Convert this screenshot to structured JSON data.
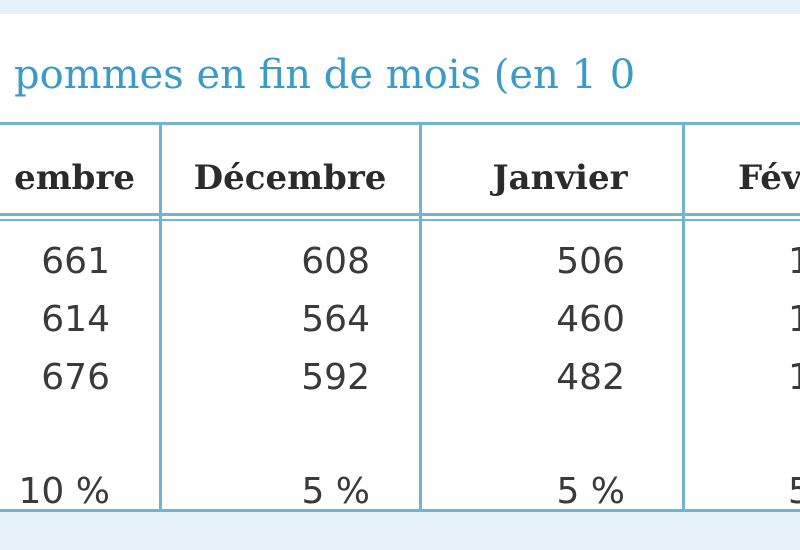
{
  "header": {
    "title": "pommes en fin de mois (en 1 0"
  },
  "table": {
    "columns": [
      "embre",
      "Décembre",
      "Janvier",
      "Fév"
    ],
    "rows": [
      [
        661,
        608,
        506,
        1
      ],
      [
        614,
        564,
        460,
        1
      ],
      [
        676,
        592,
        482,
        1
      ],
      [
        "10 %",
        "5 %",
        "5 %",
        "5"
      ]
    ]
  }
}
